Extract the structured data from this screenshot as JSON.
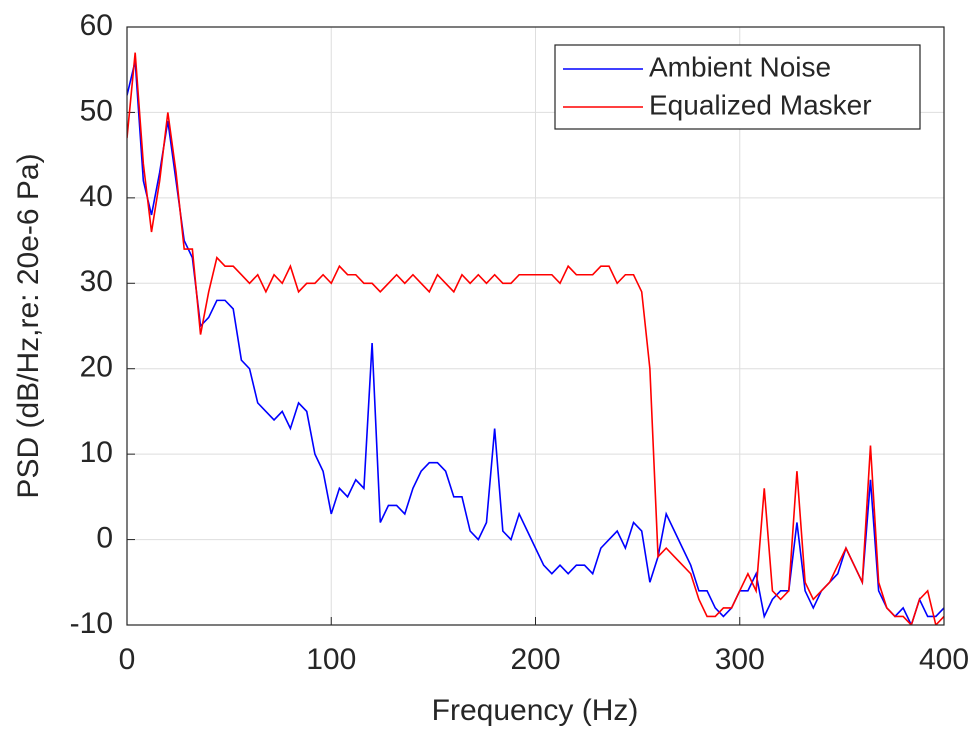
{
  "chart_data": {
    "type": "line",
    "xlabel": "Frequency (Hz)",
    "ylabel": "PSD (dB/Hz,re: 20e-6 Pa)",
    "x": [
      0,
      4,
      8,
      12,
      16,
      20,
      24,
      28,
      32,
      36,
      40,
      44,
      48,
      52,
      56,
      60,
      64,
      68,
      72,
      76,
      80,
      84,
      88,
      92,
      96,
      100,
      104,
      108,
      112,
      116,
      120,
      124,
      128,
      132,
      136,
      140,
      144,
      148,
      152,
      156,
      160,
      164,
      168,
      172,
      176,
      180,
      184,
      188,
      192,
      196,
      200,
      204,
      208,
      212,
      216,
      220,
      224,
      228,
      232,
      236,
      240,
      244,
      248,
      252,
      256,
      260,
      264,
      268,
      272,
      276,
      280,
      284,
      288,
      292,
      296,
      300,
      304,
      308,
      312,
      316,
      320,
      324,
      328,
      332,
      336,
      340,
      344,
      348,
      352,
      356,
      360,
      364,
      368,
      372,
      376,
      380,
      384,
      388,
      392,
      396,
      400
    ],
    "series": [
      {
        "name": "Ambient Noise",
        "color": "#0000ff",
        "values": [
          52,
          56,
          42,
          38,
          43,
          49,
          42,
          35,
          33,
          25,
          26,
          28,
          28,
          27,
          21,
          20,
          16,
          15,
          14,
          15,
          13,
          16,
          15,
          10,
          8,
          3,
          6,
          5,
          7,
          6,
          23,
          2,
          4,
          4,
          3,
          6,
          8,
          9,
          9,
          8,
          5,
          5,
          1,
          0,
          2,
          13,
          1,
          0,
          3,
          1,
          -1,
          -3,
          -4,
          -3,
          -4,
          -3,
          -3,
          -4,
          -1,
          0,
          1,
          -1,
          2,
          1,
          -5,
          -2,
          3,
          1,
          -1,
          -3,
          -6,
          -6,
          -8,
          -9,
          -8,
          -6,
          -6,
          -4,
          -9,
          -7,
          -6,
          -6,
          2,
          -6,
          -8,
          -6,
          -5,
          -4,
          -1,
          -3,
          -5,
          7,
          -6,
          -8,
          -9,
          -8,
          -10,
          -7,
          -9,
          -9,
          -8
        ]
      },
      {
        "name": "Equalized Masker",
        "color": "#ff0000",
        "values": [
          47,
          57,
          44,
          36,
          42,
          50,
          43,
          34,
          34,
          24,
          29,
          33,
          32,
          32,
          31,
          30,
          31,
          29,
          31,
          30,
          32,
          29,
          30,
          30,
          31,
          30,
          32,
          31,
          31,
          30,
          30,
          29,
          30,
          31,
          30,
          31,
          30,
          29,
          31,
          30,
          29,
          31,
          30,
          31,
          30,
          31,
          30,
          30,
          31,
          31,
          31,
          31,
          31,
          30,
          32,
          31,
          31,
          31,
          32,
          32,
          30,
          31,
          31,
          29,
          20,
          -2,
          -1,
          -2,
          -3,
          -4,
          -7,
          -9,
          -9,
          -8,
          -8,
          -6,
          -4,
          -6,
          6,
          -6,
          -7,
          -6,
          8,
          -5,
          -7,
          -6,
          -5,
          -3,
          -1,
          -3,
          -5,
          11,
          -5,
          -8,
          -9,
          -9,
          -10,
          -7,
          -6,
          -10,
          -9
        ]
      }
    ],
    "xlim": [
      0,
      400
    ],
    "xticks": [
      0,
      100,
      200,
      300,
      400
    ],
    "ylim": [
      -10,
      60
    ],
    "yticks": [
      -10,
      0,
      10,
      20,
      30,
      40,
      50,
      60
    ],
    "grid": true,
    "legend": "top-right"
  }
}
